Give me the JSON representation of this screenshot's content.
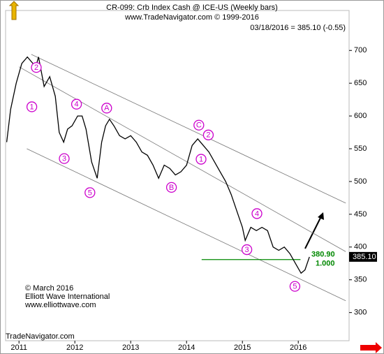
{
  "chart_data": {
    "type": "line",
    "title": "CR-099:  Crb Index Cash @ ICE-US  (Weekly bars)",
    "subtitle": "www.TradeNavigator.com © 1999-2016",
    "quote": "03/18/2016 = 385.10 (-0.55)",
    "last_label": "385.10",
    "credits": [
      "© March 2016",
      "Elliott Wave International",
      "www.elliottwave.com"
    ],
    "footer": "TradeNavigator.com",
    "xlim": [
      2010.76,
      2016.91
    ],
    "xticks": [
      2011,
      2012,
      2013,
      2014,
      2015,
      2016
    ],
    "ylim": [
      257,
      761
    ],
    "yticks": [
      300,
      350,
      400,
      450,
      500,
      550,
      600,
      650,
      700
    ],
    "series": [
      {
        "color": "#000000",
        "x": [
          2010.78,
          2010.85,
          2010.95,
          2011.05,
          2011.15,
          2011.3,
          2011.35,
          2011.45,
          2011.55,
          2011.65,
          2011.72,
          2011.8,
          2011.87,
          2011.95,
          2012.05,
          2012.13,
          2012.2,
          2012.3,
          2012.4,
          2012.48,
          2012.55,
          2012.62,
          2012.7,
          2012.8,
          2012.9,
          2013.0,
          2013.1,
          2013.2,
          2013.3,
          2013.4,
          2013.5,
          2013.6,
          2013.7,
          2013.8,
          2013.9,
          2014.0,
          2014.1,
          2014.2,
          2014.3,
          2014.4,
          2014.5,
          2014.6,
          2014.7,
          2014.8,
          2014.9,
          2015.0,
          2015.05,
          2015.15,
          2015.25,
          2015.35,
          2015.45,
          2015.55,
          2015.65,
          2015.75,
          2015.85,
          2015.95,
          2016.05,
          2016.12,
          2016.2
        ],
        "values": [
          560,
          610,
          650,
          680,
          690,
          675,
          690,
          645,
          660,
          630,
          575,
          560,
          580,
          585,
          600,
          600,
          580,
          530,
          505,
          560,
          585,
          595,
          585,
          570,
          565,
          570,
          560,
          545,
          540,
          525,
          505,
          525,
          520,
          510,
          515,
          525,
          555,
          565,
          555,
          545,
          530,
          515,
          500,
          480,
          455,
          430,
          410,
          430,
          425,
          430,
          425,
          400,
          395,
          400,
          390,
          375,
          360,
          365,
          385
        ]
      }
    ],
    "channels": [
      {
        "x": [
          2011.22,
          2016.85
        ],
        "y": [
          694,
          467
        ]
      },
      {
        "x": [
          2011.0,
          2016.85
        ],
        "y": [
          675,
          393
        ]
      },
      {
        "x": [
          2011.14,
          2016.85
        ],
        "y": [
          550,
          318
        ]
      }
    ],
    "level": {
      "value": 380.9,
      "label": "380.90",
      "ratio": "1.000",
      "x": [
        2014.27,
        2016.04
      ],
      "color": "#008800"
    },
    "annotation_color": "#cc00cc",
    "annotations": [
      {
        "label": "1",
        "x": 2011.23,
        "y": 614
      },
      {
        "label": "2",
        "x": 2011.31,
        "y": 674
      },
      {
        "label": "3",
        "x": 2011.81,
        "y": 535
      },
      {
        "label": "4",
        "x": 2012.03,
        "y": 618
      },
      {
        "label": "5",
        "x": 2012.27,
        "y": 483
      },
      {
        "label": "A",
        "x": 2012.57,
        "y": 612
      },
      {
        "label": "B",
        "x": 2013.73,
        "y": 491
      },
      {
        "label": "C",
        "x": 2014.22,
        "y": 586
      },
      {
        "label": "2",
        "x": 2014.39,
        "y": 571
      },
      {
        "label": "1",
        "x": 2014.26,
        "y": 534
      },
      {
        "label": "3",
        "x": 2015.08,
        "y": 396
      },
      {
        "label": "4",
        "x": 2015.26,
        "y": 451
      },
      {
        "label": "5",
        "x": 2015.94,
        "y": 340
      }
    ]
  }
}
